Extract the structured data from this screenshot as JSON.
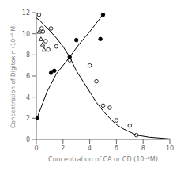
{
  "chart_data": {
    "type": "scatter",
    "title": "",
    "xlabel": "Concentration of CA or CD    (10⁻²M)",
    "ylabel": "Concentration of Digitoxin (10⁻⁶ M)",
    "xlim": [
      0,
      10
    ],
    "ylim": [
      0,
      12
    ],
    "xticks": [
      0,
      2,
      4,
      6,
      8,
      10
    ],
    "yticks": [
      0,
      2,
      4,
      6,
      8,
      10,
      12
    ],
    "grid": false,
    "series": [
      {
        "type": "line",
        "color": "#000000",
        "x": [
          0.0,
          0.3,
          0.6,
          1.0,
          1.5,
          2.0,
          2.5,
          3.0,
          3.5,
          4.0,
          4.5,
          5.0,
          5.5,
          6.0,
          6.5,
          7.0,
          7.5,
          8.5,
          10.0
        ],
        "values": [
          11.5,
          11.2,
          10.8,
          10.3,
          9.6,
          8.8,
          7.8,
          6.5,
          5.5,
          4.5,
          3.5,
          2.7,
          2.0,
          1.4,
          1.0,
          0.7,
          0.4,
          0.2,
          0.05
        ]
      },
      {
        "type": "line",
        "color": "#000000",
        "x": [
          0.05,
          0.8,
          1.5,
          2.5,
          3.2,
          4.0,
          4.8,
          5.0
        ],
        "values": [
          2.0,
          4.5,
          6.2,
          7.8,
          9.0,
          10.2,
          11.5,
          11.9
        ]
      },
      {
        "type": "scatter",
        "marker": "circle_open",
        "color": "#000000",
        "x": [
          0.2,
          0.4,
          0.5,
          0.7,
          0.9,
          1.1,
          1.5,
          2.5,
          4.0,
          4.5,
          5.0,
          5.5,
          6.0,
          7.0,
          7.5
        ],
        "values": [
          11.8,
          10.5,
          10.2,
          9.3,
          8.5,
          10.5,
          8.8,
          7.5,
          7.0,
          5.5,
          3.2,
          3.0,
          1.8,
          1.3,
          0.4
        ]
      },
      {
        "type": "scatter",
        "marker": "triangle_open",
        "color": "#000000",
        "x": [
          0.22,
          0.35,
          0.48,
          0.58
        ],
        "values": [
          10.2,
          9.5,
          9.0,
          8.5
        ]
      },
      {
        "type": "scatter",
        "marker": "circle",
        "color": "#000000",
        "x": [
          0.05,
          1.1,
          1.35,
          2.5,
          3.0,
          4.8,
          5.0
        ],
        "values": [
          2.0,
          6.3,
          6.5,
          7.8,
          9.4,
          9.5,
          11.8
        ]
      }
    ]
  }
}
